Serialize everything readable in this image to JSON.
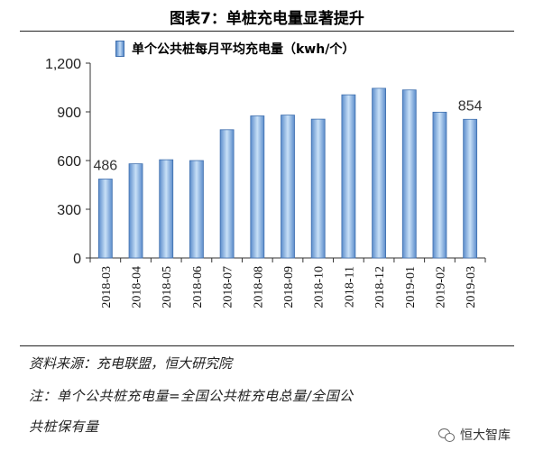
{
  "figure": {
    "title": "图表7：单桩充电量显著提升",
    "source": "资料来源：充电联盟，恒大研究院",
    "note_line1": "注：单个公共桩充电量=全国公共桩充电总量/全国公",
    "note_line2": "共桩保有量",
    "watermark": "恒大智库",
    "watermark_icon": "wechat-icon"
  },
  "colors": {
    "bar_edge": "#3f6fae",
    "bar_dark": "#5b8ccb",
    "bar_light": "#c8e0f7",
    "axis": "#333333"
  },
  "chart_data": {
    "type": "bar",
    "title": "",
    "xlabel": "",
    "ylabel": "",
    "categories": [
      "2018-03",
      "2018-04",
      "2018-05",
      "2018-06",
      "2018-07",
      "2018-08",
      "2018-09",
      "2018-10",
      "2018-11",
      "2018-12",
      "2019-01",
      "2019-02",
      "2019-03"
    ],
    "series": [
      {
        "name": "单个公共桩每月平均充电量（kwh/个）",
        "values": [
          486,
          580,
          605,
          600,
          790,
          875,
          880,
          855,
          1005,
          1045,
          1035,
          898,
          854
        ]
      }
    ],
    "ylim": [
      0,
      1200
    ],
    "yticks": [
      "0",
      "300",
      "600",
      "900",
      "1,200"
    ],
    "data_labels": [
      {
        "category": "2018-03",
        "text": "486"
      },
      {
        "category": "2019-03",
        "text": "854"
      }
    ],
    "legend": "top",
    "grid": false
  }
}
